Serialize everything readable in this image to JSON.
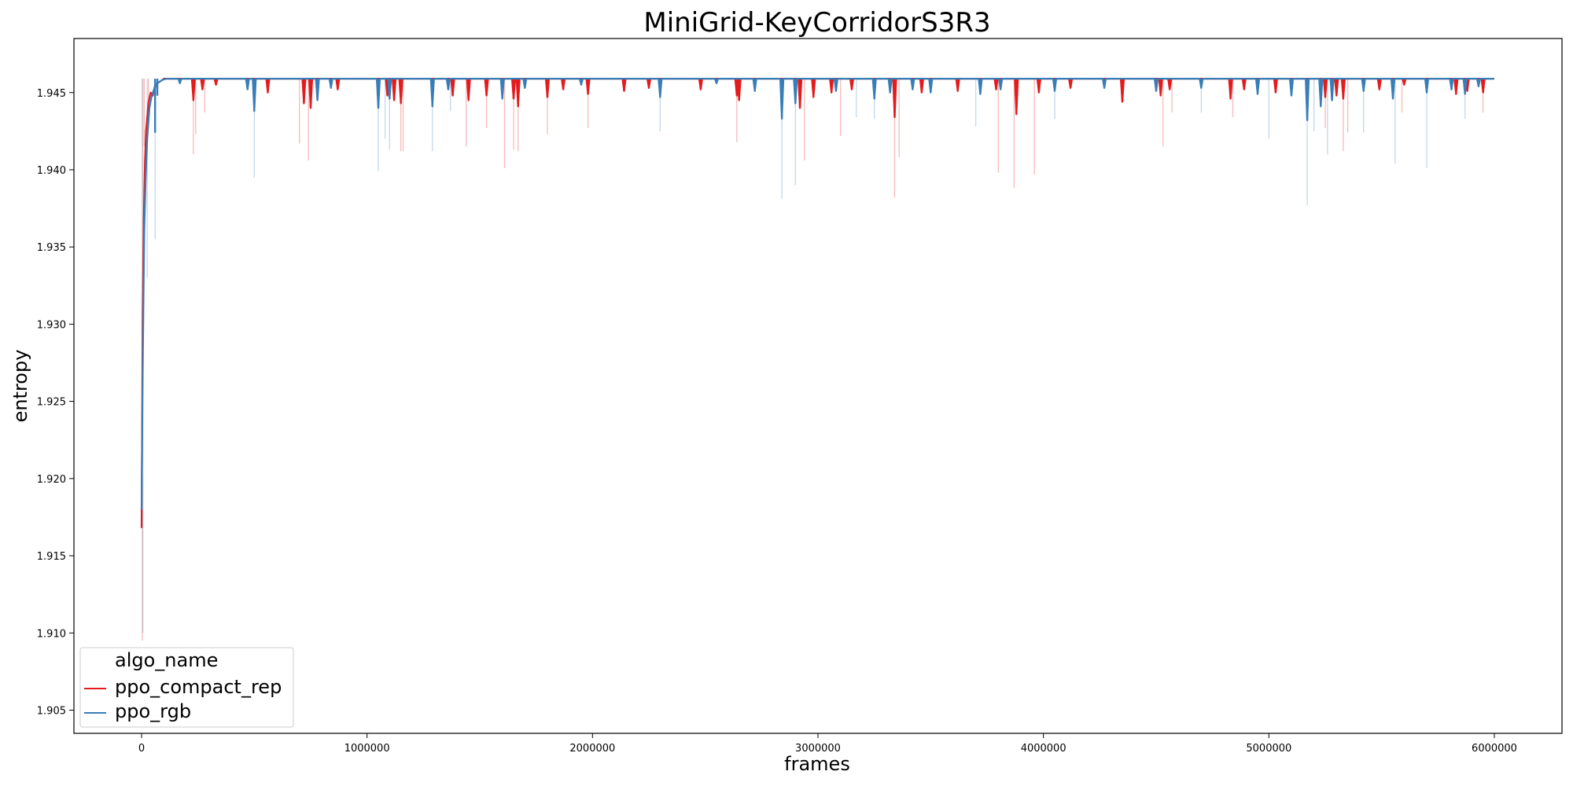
{
  "chart_data": {
    "type": "line",
    "title": "MiniGrid-KeyCorridorS3R3",
    "xlabel": "frames",
    "ylabel": "entropy",
    "xlim": [
      -300000,
      6300000
    ],
    "ylim": [
      1.9035,
      1.9485
    ],
    "xticks": [
      0,
      1000000,
      2000000,
      3000000,
      4000000,
      5000000,
      6000000
    ],
    "yticks": [
      1.905,
      1.91,
      1.915,
      1.92,
      1.925,
      1.93,
      1.935,
      1.94,
      1.945
    ],
    "grid": false,
    "legend": {
      "title": "algo_name",
      "placement": "lower-left",
      "entries": [
        "ppo_compact_rep",
        "ppo_rgb"
      ]
    },
    "series": [
      {
        "name": "ppo_compact_rep",
        "color": "#e41a1c",
        "baseline": 1.9459,
        "ramp": {
          "x": [
            0,
            5000,
            10000,
            15000,
            20000,
            30000,
            40000,
            50000,
            60000,
            80000,
            100000
          ],
          "y": [
            1.9168,
            1.9308,
            1.937,
            1.9405,
            1.9425,
            1.9443,
            1.945,
            1.9448,
            1.9455,
            1.9457,
            1.9459
          ]
        },
        "dips": [
          [
            230000,
            1.9445
          ],
          [
            270000,
            1.9452
          ],
          [
            330000,
            1.9455
          ],
          [
            560000,
            1.945
          ],
          [
            720000,
            1.9443
          ],
          [
            750000,
            1.944
          ],
          [
            870000,
            1.9452
          ],
          [
            1090000,
            1.9448
          ],
          [
            1120000,
            1.9445
          ],
          [
            1150000,
            1.9443
          ],
          [
            1380000,
            1.9448
          ],
          [
            1450000,
            1.9445
          ],
          [
            1530000,
            1.9448
          ],
          [
            1650000,
            1.9446
          ],
          [
            1670000,
            1.9441
          ],
          [
            1800000,
            1.9447
          ],
          [
            1870000,
            1.9452
          ],
          [
            1980000,
            1.9449
          ],
          [
            2140000,
            1.9451
          ],
          [
            2250000,
            1.9453
          ],
          [
            2480000,
            1.9452
          ],
          [
            2640000,
            1.9448
          ],
          [
            2650000,
            1.9445
          ],
          [
            2920000,
            1.944
          ],
          [
            2980000,
            1.9447
          ],
          [
            3060000,
            1.945
          ],
          [
            3150000,
            1.9452
          ],
          [
            3340000,
            1.9434
          ],
          [
            3460000,
            1.945
          ],
          [
            3620000,
            1.9451
          ],
          [
            3790000,
            1.9452
          ],
          [
            3880000,
            1.9436
          ],
          [
            3980000,
            1.945
          ],
          [
            4120000,
            1.9453
          ],
          [
            4350000,
            1.9444
          ],
          [
            4520000,
            1.9448
          ],
          [
            4560000,
            1.9452
          ],
          [
            4830000,
            1.9446
          ],
          [
            4890000,
            1.9452
          ],
          [
            5030000,
            1.945
          ],
          [
            5250000,
            1.9447
          ],
          [
            5300000,
            1.9448
          ],
          [
            5330000,
            1.9446
          ],
          [
            5490000,
            1.9452
          ],
          [
            5600000,
            1.9455
          ],
          [
            5830000,
            1.9449
          ],
          [
            5880000,
            1.9451
          ],
          [
            5950000,
            1.945
          ]
        ],
        "min_spikes": [
          [
            3000,
            1.9095
          ],
          [
            12000,
            1.9415
          ],
          [
            30000,
            1.944
          ],
          [
            230000,
            1.941
          ],
          [
            240000,
            1.9423
          ],
          [
            280000,
            1.9437
          ],
          [
            700000,
            1.9417
          ],
          [
            740000,
            1.9406
          ],
          [
            1150000,
            1.9412
          ],
          [
            1160000,
            1.9412
          ],
          [
            1440000,
            1.9415
          ],
          [
            1530000,
            1.9427
          ],
          [
            1610000,
            1.9401
          ],
          [
            1650000,
            1.9413
          ],
          [
            1670000,
            1.9412
          ],
          [
            1800000,
            1.9423
          ],
          [
            1980000,
            1.9427
          ],
          [
            2640000,
            1.9418
          ],
          [
            2940000,
            1.9406
          ],
          [
            3100000,
            1.9422
          ],
          [
            3340000,
            1.9382
          ],
          [
            3360000,
            1.9408
          ],
          [
            3800000,
            1.9398
          ],
          [
            3870000,
            1.9388
          ],
          [
            3960000,
            1.9397
          ],
          [
            4530000,
            1.9415
          ],
          [
            4570000,
            1.9437
          ],
          [
            4840000,
            1.9434
          ],
          [
            5250000,
            1.9427
          ],
          [
            5330000,
            1.9412
          ],
          [
            5350000,
            1.9424
          ],
          [
            5590000,
            1.9437
          ],
          [
            5950000,
            1.9437
          ]
        ]
      },
      {
        "name": "ppo_rgb",
        "color": "#377eb8",
        "baseline": 1.9459,
        "ramp": {
          "x": [
            0,
            4000,
            8000,
            12000,
            18000,
            25000,
            35000,
            45000,
            55000,
            70000,
            90000,
            110000
          ],
          "y": [
            1.918,
            1.925,
            1.931,
            1.936,
            1.9395,
            1.942,
            1.944,
            1.9448,
            1.9452,
            1.9456,
            1.9458,
            1.9459
          ]
        },
        "dips": [
          [
            60000,
            1.9424
          ],
          [
            70000,
            1.9448
          ],
          [
            170000,
            1.9456
          ],
          [
            470000,
            1.9452
          ],
          [
            500000,
            1.9438
          ],
          [
            780000,
            1.9445
          ],
          [
            840000,
            1.9453
          ],
          [
            1050000,
            1.944
          ],
          [
            1100000,
            1.9446
          ],
          [
            1290000,
            1.9441
          ],
          [
            1360000,
            1.9452
          ],
          [
            1600000,
            1.9446
          ],
          [
            1700000,
            1.9453
          ],
          [
            1950000,
            1.9455
          ],
          [
            2300000,
            1.9447
          ],
          [
            2550000,
            1.9456
          ],
          [
            2720000,
            1.9451
          ],
          [
            2840000,
            1.9433
          ],
          [
            2900000,
            1.9443
          ],
          [
            3080000,
            1.9451
          ],
          [
            3250000,
            1.9446
          ],
          [
            3320000,
            1.945
          ],
          [
            3420000,
            1.9452
          ],
          [
            3500000,
            1.945
          ],
          [
            3720000,
            1.9449
          ],
          [
            3810000,
            1.9452
          ],
          [
            4050000,
            1.9451
          ],
          [
            4270000,
            1.9453
          ],
          [
            4500000,
            1.9451
          ],
          [
            4700000,
            1.9453
          ],
          [
            4950000,
            1.9449
          ],
          [
            5100000,
            1.9448
          ],
          [
            5170000,
            1.9432
          ],
          [
            5230000,
            1.9441
          ],
          [
            5280000,
            1.9445
          ],
          [
            5420000,
            1.9451
          ],
          [
            5550000,
            1.9446
          ],
          [
            5700000,
            1.945
          ],
          [
            5810000,
            1.9452
          ],
          [
            5870000,
            1.9449
          ],
          [
            5930000,
            1.9454
          ]
        ],
        "min_spikes": [
          [
            6000,
            1.91
          ],
          [
            25000,
            1.933
          ],
          [
            60000,
            1.9355
          ],
          [
            500000,
            1.9395
          ],
          [
            1050000,
            1.9399
          ],
          [
            1080000,
            1.942
          ],
          [
            1100000,
            1.9413
          ],
          [
            1290000,
            1.9412
          ],
          [
            1370000,
            1.9438
          ],
          [
            2300000,
            1.9425
          ],
          [
            2840000,
            1.9381
          ],
          [
            2900000,
            1.939
          ],
          [
            3170000,
            1.9434
          ],
          [
            3250000,
            1.9433
          ],
          [
            3700000,
            1.9428
          ],
          [
            4050000,
            1.9433
          ],
          [
            4700000,
            1.9437
          ],
          [
            5000000,
            1.942
          ],
          [
            5170000,
            1.9377
          ],
          [
            5200000,
            1.9425
          ],
          [
            5260000,
            1.941
          ],
          [
            5420000,
            1.9424
          ],
          [
            5560000,
            1.9404
          ],
          [
            5700000,
            1.9401
          ],
          [
            5870000,
            1.9433
          ]
        ]
      }
    ]
  }
}
